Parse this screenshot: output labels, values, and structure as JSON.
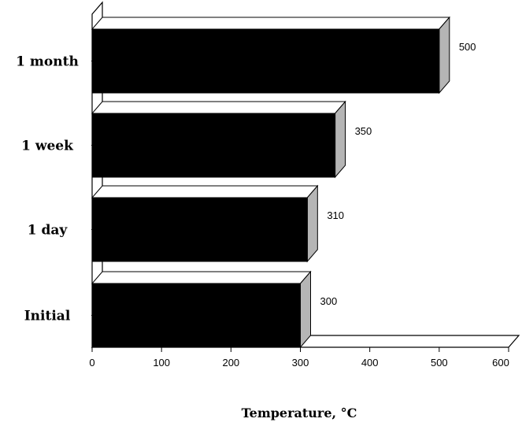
{
  "chart_data": {
    "type": "bar",
    "orientation": "horizontal",
    "style": "3d",
    "categories": [
      "1 month",
      "1 week",
      "1 day",
      "Initial"
    ],
    "values": [
      500,
      350,
      310,
      300
    ],
    "data_labels": [
      "500",
      "350",
      "310",
      "300"
    ],
    "xlabel": "Temperature, °C",
    "xlim": [
      0,
      600
    ],
    "xticks": [
      "0",
      "100",
      "200",
      "300",
      "400",
      "500",
      "600"
    ],
    "grid": false,
    "colors": {
      "bar_front": "#000000",
      "bar_side": "#b5b5b5",
      "bar_top": "#ffffff",
      "axis": "#000000"
    }
  }
}
